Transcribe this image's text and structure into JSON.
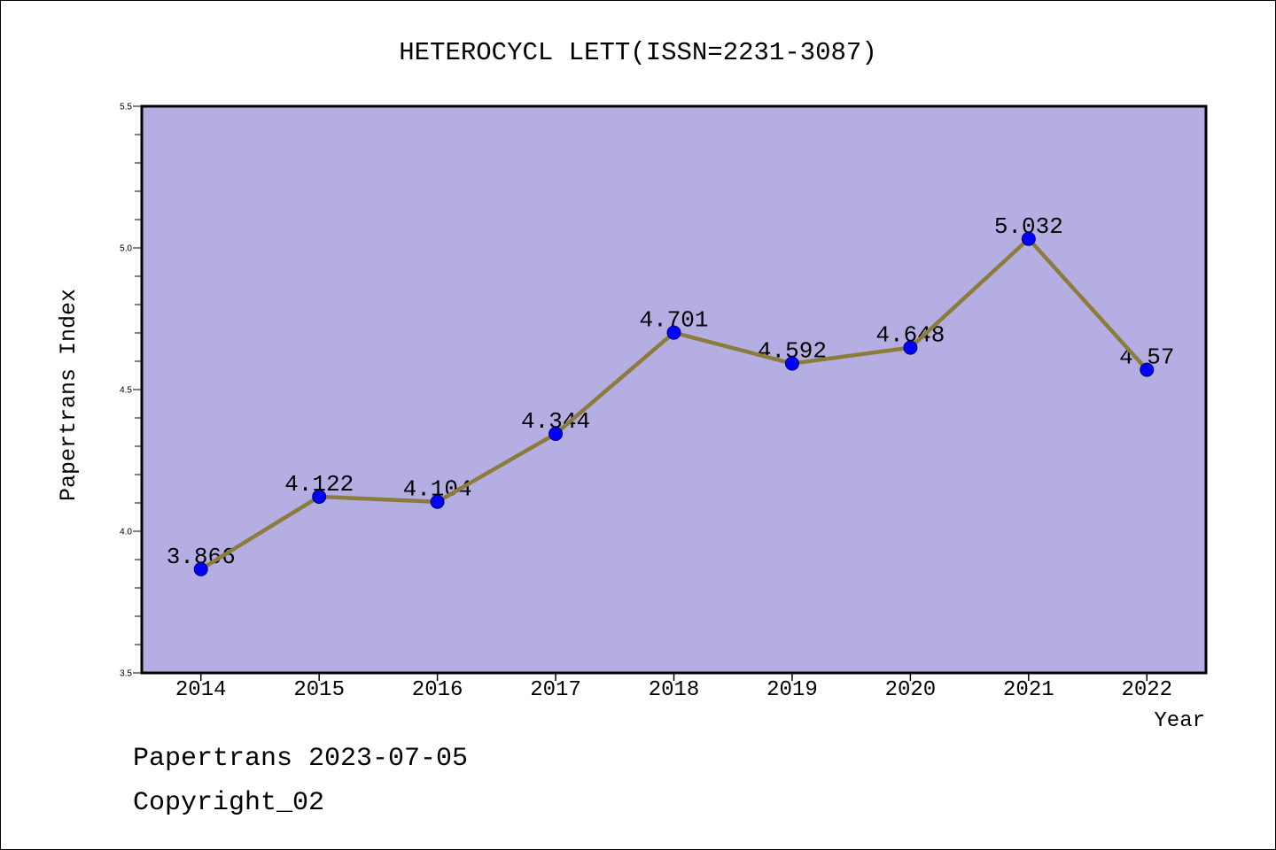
{
  "colors": {
    "page_background": "#ffffff",
    "plot_background": "#b4aee2",
    "series_line": "#8c7c3c",
    "marker_fill": "#0000ff",
    "marker_stroke": "#00006e",
    "axis": "#000000"
  },
  "footer": {
    "line1": "Papertrans 2023-07-05",
    "line2": "Copyright_02"
  },
  "chart_data": {
    "type": "line",
    "title": "HETEROCYCL LETT(ISSN=2231-3087)",
    "xlabel": "Year",
    "ylabel": "Papertrans Index",
    "categories": [
      "2014",
      "2015",
      "2016",
      "2017",
      "2018",
      "2019",
      "2020",
      "2021",
      "2022"
    ],
    "values": [
      3.866,
      4.122,
      4.104,
      4.344,
      4.701,
      4.592,
      4.648,
      5.032,
      4.57
    ],
    "ylim": [
      3.5,
      5.5
    ],
    "yticks": [
      "3.5",
      "4.0",
      "4.5",
      "5.0",
      "5.5"
    ],
    "grid": false,
    "data_labels": true
  }
}
